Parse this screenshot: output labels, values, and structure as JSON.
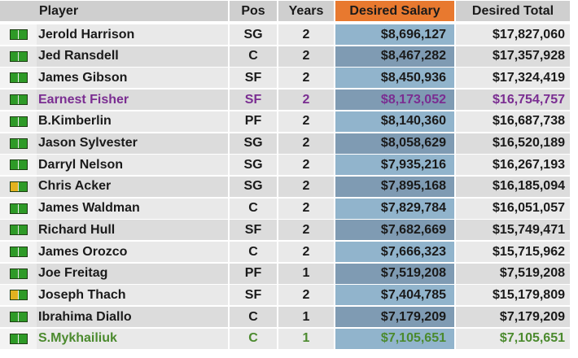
{
  "columns": {
    "player": "Player",
    "pos": "Pos",
    "years": "Years",
    "desired_salary": "Desired Salary",
    "desired_total": "Desired Total"
  },
  "colors": {
    "status_green": "#2e9a27",
    "status_yellow": "#e2b21f",
    "highlight_purple": "#7a2d91",
    "highlight_green": "#4b8a2e",
    "sorted_header": "#e8792f"
  },
  "rows": [
    {
      "status": "green",
      "player": "Jerold Harrison",
      "pos": "SG",
      "years": "2",
      "salary": "$8,696,127",
      "total": "$17,827,060",
      "highlight": ""
    },
    {
      "status": "green",
      "player": "Jed Ransdell",
      "pos": "C",
      "years": "2",
      "salary": "$8,467,282",
      "total": "$17,357,928",
      "highlight": ""
    },
    {
      "status": "green",
      "player": "James Gibson",
      "pos": "SF",
      "years": "2",
      "salary": "$8,450,936",
      "total": "$17,324,419",
      "highlight": ""
    },
    {
      "status": "green",
      "player": "Earnest Fisher",
      "pos": "SF",
      "years": "2",
      "salary": "$8,173,052",
      "total": "$16,754,757",
      "highlight": "purple"
    },
    {
      "status": "green",
      "player": "B.Kimberlin",
      "pos": "PF",
      "years": "2",
      "salary": "$8,140,360",
      "total": "$16,687,738",
      "highlight": ""
    },
    {
      "status": "green",
      "player": "Jason Sylvester",
      "pos": "SG",
      "years": "2",
      "salary": "$8,058,629",
      "total": "$16,520,189",
      "highlight": ""
    },
    {
      "status": "green",
      "player": "Darryl Nelson",
      "pos": "SG",
      "years": "2",
      "salary": "$7,935,216",
      "total": "$16,267,193",
      "highlight": ""
    },
    {
      "status": "yellow",
      "player": "Chris Acker",
      "pos": "SG",
      "years": "2",
      "salary": "$7,895,168",
      "total": "$16,185,094",
      "highlight": ""
    },
    {
      "status": "green",
      "player": "James Waldman",
      "pos": "C",
      "years": "2",
      "salary": "$7,829,784",
      "total": "$16,051,057",
      "highlight": ""
    },
    {
      "status": "green",
      "player": "Richard Hull",
      "pos": "SF",
      "years": "2",
      "salary": "$7,682,669",
      "total": "$15,749,471",
      "highlight": ""
    },
    {
      "status": "green",
      "player": "James Orozco",
      "pos": "C",
      "years": "2",
      "salary": "$7,666,323",
      "total": "$15,715,962",
      "highlight": ""
    },
    {
      "status": "green",
      "player": "Joe Freitag",
      "pos": "PF",
      "years": "1",
      "salary": "$7,519,208",
      "total": "$7,519,208",
      "highlight": ""
    },
    {
      "status": "yellow",
      "player": "Joseph Thach",
      "pos": "SF",
      "years": "2",
      "salary": "$7,404,785",
      "total": "$15,179,809",
      "highlight": ""
    },
    {
      "status": "green",
      "player": "Ibrahima Diallo",
      "pos": "C",
      "years": "1",
      "salary": "$7,179,209",
      "total": "$7,179,209",
      "highlight": ""
    },
    {
      "status": "green",
      "player": "S.Mykhailiuk",
      "pos": "C",
      "years": "1",
      "salary": "$7,105,651",
      "total": "$7,105,651",
      "highlight": "green"
    }
  ]
}
